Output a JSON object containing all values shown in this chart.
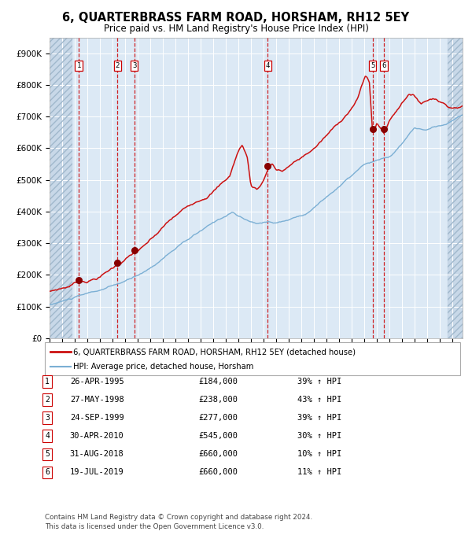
{
  "title": "6, QUARTERBRASS FARM ROAD, HORSHAM, RH12 5EY",
  "subtitle": "Price paid vs. HM Land Registry's House Price Index (HPI)",
  "background_color": "#dce9f5",
  "plot_bg_color": "#dce9f5",
  "grid_color": "#ffffff",
  "transactions": [
    {
      "num": 1,
      "date": "26-APR-1995",
      "price": 184000,
      "year": 1995.32,
      "pct": "39%",
      "dir": "↑"
    },
    {
      "num": 2,
      "date": "27-MAY-1998",
      "price": 238000,
      "year": 1998.4,
      "pct": "43%",
      "dir": "↑"
    },
    {
      "num": 3,
      "date": "24-SEP-1999",
      "price": 277000,
      "year": 1999.73,
      "pct": "39%",
      "dir": "↑"
    },
    {
      "num": 4,
      "date": "30-APR-2010",
      "price": 545000,
      "year": 2010.33,
      "pct": "30%",
      "dir": "↑"
    },
    {
      "num": 5,
      "date": "31-AUG-2018",
      "price": 660000,
      "year": 2018.66,
      "pct": "10%",
      "dir": "↑"
    },
    {
      "num": 6,
      "date": "19-JUL-2019",
      "price": 660000,
      "year": 2019.55,
      "pct": "11%",
      "dir": "↑"
    }
  ],
  "legend_house": "6, QUARTERBRASS FARM ROAD, HORSHAM, RH12 5EY (detached house)",
  "legend_hpi": "HPI: Average price, detached house, Horsham",
  "footer1": "Contains HM Land Registry data © Crown copyright and database right 2024.",
  "footer2": "This data is licensed under the Open Government Licence v3.0.",
  "hpi_color": "#7bafd4",
  "house_color": "#cc1111",
  "dot_color": "#880000",
  "vline_color": "#cc0000",
  "ylim": [
    0,
    950000
  ],
  "xlim_start": 1993.0,
  "xlim_end": 2025.8,
  "yticks": [
    0,
    100000,
    200000,
    300000,
    400000,
    500000,
    600000,
    700000,
    800000,
    900000
  ],
  "ytick_labels": [
    "£0",
    "£100K",
    "£200K",
    "£300K",
    "£400K",
    "£500K",
    "£600K",
    "£700K",
    "£800K",
    "£900K"
  ],
  "hatch_left_end": 1994.8,
  "hatch_right_start": 2024.6
}
